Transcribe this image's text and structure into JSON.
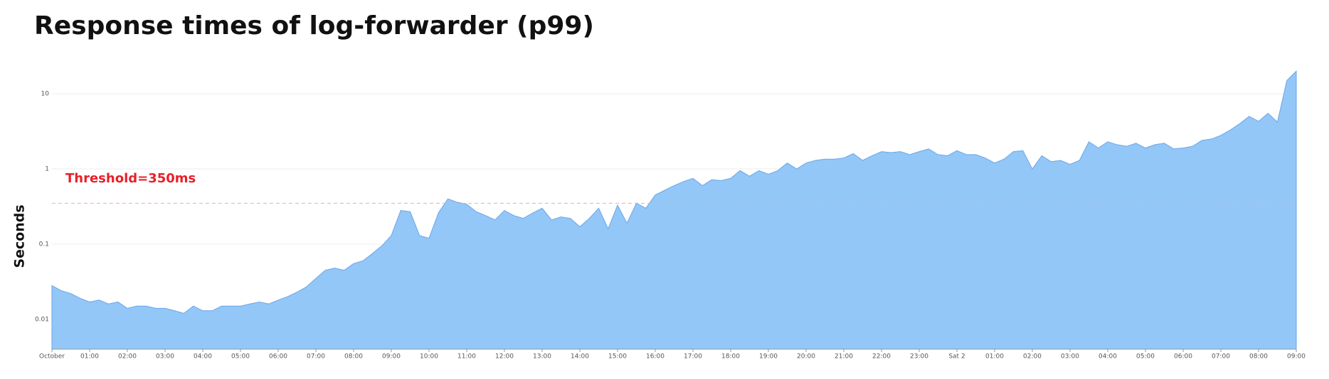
{
  "chart_data": {
    "type": "area",
    "title": "Response times of log-forwarder (p99)",
    "ylabel": "Seconds",
    "log_y": true,
    "grid": true,
    "color": "#93c7f8",
    "line_color": "#6aa6e6",
    "threshold": {
      "value": 0.35,
      "label": "Threshold=350ms",
      "color": "#e8202a"
    },
    "xlim": [
      0,
      33
    ],
    "xticks": [
      {
        "value": 0,
        "label": "October"
      },
      {
        "value": 1,
        "label": "01:00"
      },
      {
        "value": 2,
        "label": "02:00"
      },
      {
        "value": 3,
        "label": "03:00"
      },
      {
        "value": 4,
        "label": "04:00"
      },
      {
        "value": 5,
        "label": "05:00"
      },
      {
        "value": 6,
        "label": "06:00"
      },
      {
        "value": 7,
        "label": "07:00"
      },
      {
        "value": 8,
        "label": "08:00"
      },
      {
        "value": 9,
        "label": "09:00"
      },
      {
        "value": 10,
        "label": "10:00"
      },
      {
        "value": 11,
        "label": "11:00"
      },
      {
        "value": 12,
        "label": "12:00"
      },
      {
        "value": 13,
        "label": "13:00"
      },
      {
        "value": 14,
        "label": "14:00"
      },
      {
        "value": 15,
        "label": "15:00"
      },
      {
        "value": 16,
        "label": "16:00"
      },
      {
        "value": 17,
        "label": "17:00"
      },
      {
        "value": 18,
        "label": "18:00"
      },
      {
        "value": 19,
        "label": "19:00"
      },
      {
        "value": 20,
        "label": "20:00"
      },
      {
        "value": 21,
        "label": "21:00"
      },
      {
        "value": 22,
        "label": "22:00"
      },
      {
        "value": 23,
        "label": "23:00"
      },
      {
        "value": 24,
        "label": "Sat 2"
      },
      {
        "value": 25,
        "label": "01:00"
      },
      {
        "value": 26,
        "label": "02:00"
      },
      {
        "value": 27,
        "label": "03:00"
      },
      {
        "value": 28,
        "label": "04:00"
      },
      {
        "value": 29,
        "label": "05:00"
      },
      {
        "value": 30,
        "label": "06:00"
      },
      {
        "value": 31,
        "label": "07:00"
      },
      {
        "value": 32,
        "label": "08:00"
      },
      {
        "value": 33,
        "label": "09:00"
      }
    ],
    "ylim": [
      0.004,
      25
    ],
    "yticks": [
      0.01,
      0.1,
      1,
      10
    ],
    "x": [
      0,
      0.25,
      0.5,
      0.75,
      1,
      1.25,
      1.5,
      1.75,
      2,
      2.25,
      2.5,
      2.75,
      3,
      3.25,
      3.5,
      3.75,
      4,
      4.25,
      4.5,
      4.75,
      5,
      5.25,
      5.5,
      5.75,
      6,
      6.25,
      6.5,
      6.75,
      7,
      7.25,
      7.5,
      7.75,
      8,
      8.25,
      8.5,
      8.75,
      9,
      9.25,
      9.5,
      9.75,
      10,
      10.25,
      10.5,
      10.75,
      11,
      11.25,
      11.5,
      11.75,
      12,
      12.25,
      12.5,
      12.75,
      13,
      13.25,
      13.5,
      13.75,
      14,
      14.25,
      14.5,
      14.75,
      15,
      15.25,
      15.5,
      15.75,
      16,
      16.25,
      16.5,
      16.75,
      17,
      17.25,
      17.5,
      17.75,
      18,
      18.25,
      18.5,
      18.75,
      19,
      19.25,
      19.5,
      19.75,
      20,
      20.25,
      20.5,
      20.75,
      21,
      21.25,
      21.5,
      21.75,
      22,
      22.25,
      22.5,
      22.75,
      23,
      23.25,
      23.5,
      23.75,
      24,
      24.25,
      24.5,
      24.75,
      25,
      25.25,
      25.5,
      25.75,
      26,
      26.25,
      26.5,
      26.75,
      27,
      27.25,
      27.5,
      27.75,
      28,
      28.25,
      28.5,
      28.75,
      29,
      29.25,
      29.5,
      29.75,
      30,
      30.25,
      30.5,
      30.75,
      31,
      31.25,
      31.5,
      31.75,
      32,
      32.25,
      32.5,
      32.75,
      33
    ],
    "values": [
      0.028,
      0.024,
      0.022,
      0.019,
      0.017,
      0.018,
      0.016,
      0.017,
      0.014,
      0.015,
      0.015,
      0.014,
      0.014,
      0.013,
      0.012,
      0.015,
      0.013,
      0.013,
      0.015,
      0.015,
      0.015,
      0.016,
      0.017,
      0.016,
      0.018,
      0.02,
      0.023,
      0.027,
      0.035,
      0.045,
      0.048,
      0.045,
      0.055,
      0.06,
      0.075,
      0.095,
      0.13,
      0.28,
      0.27,
      0.13,
      0.12,
      0.26,
      0.4,
      0.36,
      0.34,
      0.27,
      0.24,
      0.21,
      0.28,
      0.24,
      0.22,
      0.26,
      0.3,
      0.21,
      0.23,
      0.22,
      0.17,
      0.22,
      0.3,
      0.16,
      0.33,
      0.19,
      0.35,
      0.3,
      0.45,
      0.52,
      0.6,
      0.68,
      0.75,
      0.6,
      0.72,
      0.7,
      0.75,
      0.95,
      0.8,
      0.95,
      0.85,
      0.95,
      1.2,
      1,
      1.2,
      1.3,
      1.35,
      1.35,
      1.4,
      1.6,
      1.3,
      1.5,
      1.7,
      1.65,
      1.7,
      1.55,
      1.7,
      1.85,
      1.55,
      1.5,
      1.75,
      1.55,
      1.55,
      1.4,
      1.2,
      1.35,
      1.7,
      1.75,
      1,
      1.5,
      1.25,
      1.3,
      1.15,
      1.3,
      2.3,
      1.9,
      2.3,
      2.1,
      2,
      2.2,
      1.9,
      2.1,
      2.2,
      1.85,
      1.9,
      2,
      2.4,
      2.5,
      2.8,
      3.3,
      4,
      5,
      4.3,
      5.5,
      4.2,
      15,
      20
    ]
  }
}
